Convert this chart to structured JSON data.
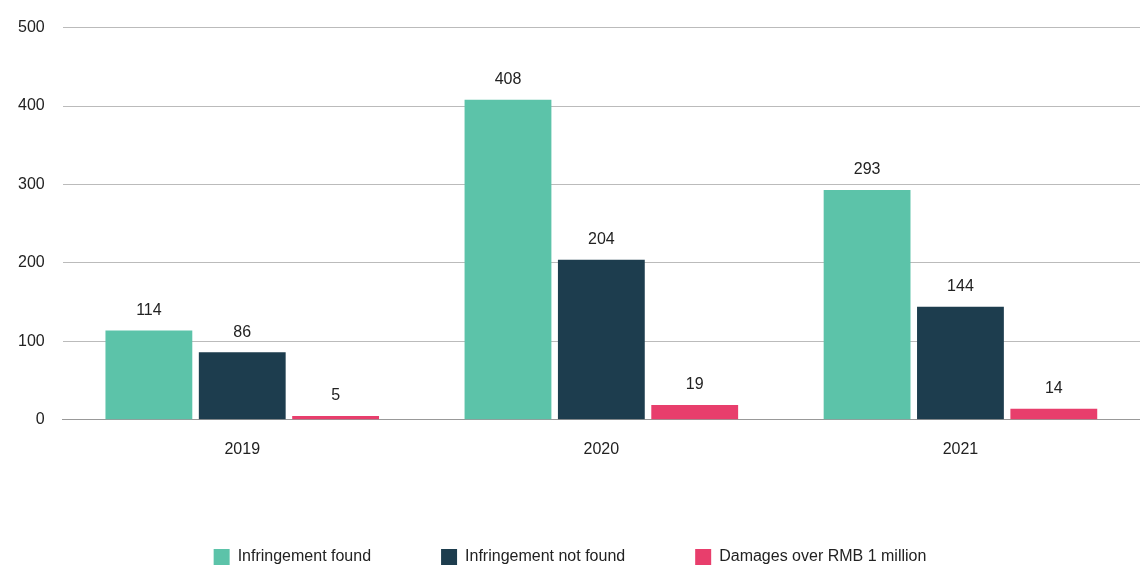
{
  "chart_data": {
    "type": "bar",
    "categories": [
      "2019",
      "2020",
      "2021"
    ],
    "series": [
      {
        "name": "Infringement found",
        "color": "#5cc3a9",
        "values": [
          114,
          408,
          293
        ]
      },
      {
        "name": "Infringement not found",
        "color": "#1d3d4e",
        "values": [
          86,
          204,
          144
        ]
      },
      {
        "name": "Damages over RMB 1 million",
        "color": "#e83e6c",
        "values": [
          5,
          19,
          14
        ]
      }
    ],
    "ylim": [
      0,
      500
    ],
    "yticks": [
      0,
      100,
      200,
      300,
      400,
      500
    ],
    "grid": "y",
    "legend": "bottom",
    "data_labels": true
  }
}
